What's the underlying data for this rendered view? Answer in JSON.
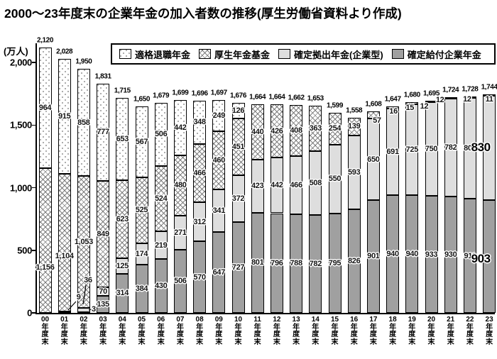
{
  "title": "2000〜23年度末の企業年金の加入者数の推移(厚生労働省資料より作成)",
  "chart_data": {
    "type": "bar",
    "stacked": true,
    "title": "2000〜23年度末の企業年金の加入者数の推移(厚生労働省資料より作成)",
    "unit": "万人",
    "ylabel": "(万人)",
    "yticks": [
      0,
      500,
      1000,
      1500,
      2000
    ],
    "ylim": [
      0,
      2200
    ],
    "grid": false,
    "legend_position": "top",
    "stack_order_bottom_to_top": [
      "確定給付企業年金",
      "確定拠出年金(企業型)",
      "厚生年金基金",
      "適格退職年金"
    ],
    "categories": [
      "00年度末",
      "01年度末",
      "02年度末",
      "03年度末",
      "04年度末",
      "05年度末",
      "06年度末",
      "07年度末",
      "08年度末",
      "09年度末",
      "10年度末",
      "11年度末",
      "12年度末",
      "13年度末",
      "14年度末",
      "15年度末",
      "16年度末",
      "17年度末",
      "18年度末",
      "19年度末",
      "20年度末",
      "21年度末",
      "22年度末",
      "23年度末"
    ],
    "series": [
      {
        "key": "tekikaku",
        "name": "適格退職年金",
        "pattern": "diagonal-dots",
        "color": "#ffffff",
        "values": [
          964,
          915,
          858,
          777,
          653,
          567,
          506,
          442,
          348,
          249,
          126,
          0,
          0,
          0,
          0,
          0,
          0,
          0,
          0,
          0,
          0,
          0,
          0,
          0
        ]
      },
      {
        "key": "kosei",
        "name": "厚生年金基金",
        "pattern": "crosshatch",
        "color": "#ffffff",
        "values": [
          1156,
          1104,
          1053,
          849,
          623,
          525,
          524,
          480,
          466,
          460,
          451,
          440,
          426,
          408,
          363,
          254,
          139,
          57,
          16,
          15,
          12,
          12,
          12,
          11
        ]
      },
      {
        "key": "dc",
        "name": "確定拠出年金(企業型)",
        "pattern": "solid-light-gray",
        "color": "#dedede",
        "values": [
          0,
          9,
          36,
          70,
          125,
          174,
          219,
          271,
          312,
          341,
          372,
          423,
          442,
          466,
          508,
          550,
          593,
          650,
          691,
          725,
          750,
          782,
          805,
          830
        ]
      },
      {
        "key": "db",
        "name": "確定給付企業年金",
        "pattern": "solid-dark-gray",
        "color": "#a0a0a0",
        "values": [
          0,
          0,
          3,
          135,
          314,
          384,
          430,
          506,
          570,
          647,
          727,
          801,
          796,
          788,
          782,
          795,
          826,
          901,
          940,
          940,
          933,
          930,
          911,
          903
        ]
      }
    ],
    "totals": [
      2120,
      2028,
      1950,
      1831,
      1715,
      1650,
      1679,
      1699,
      1696,
      1697,
      1676,
      1664,
      1664,
      1662,
      1653,
      1599,
      1558,
      1608,
      1647,
      1680,
      1695,
      1724,
      1728,
      1744
    ],
    "emphasis": {
      "category": "23年度末",
      "labels": [
        830,
        903
      ]
    }
  }
}
